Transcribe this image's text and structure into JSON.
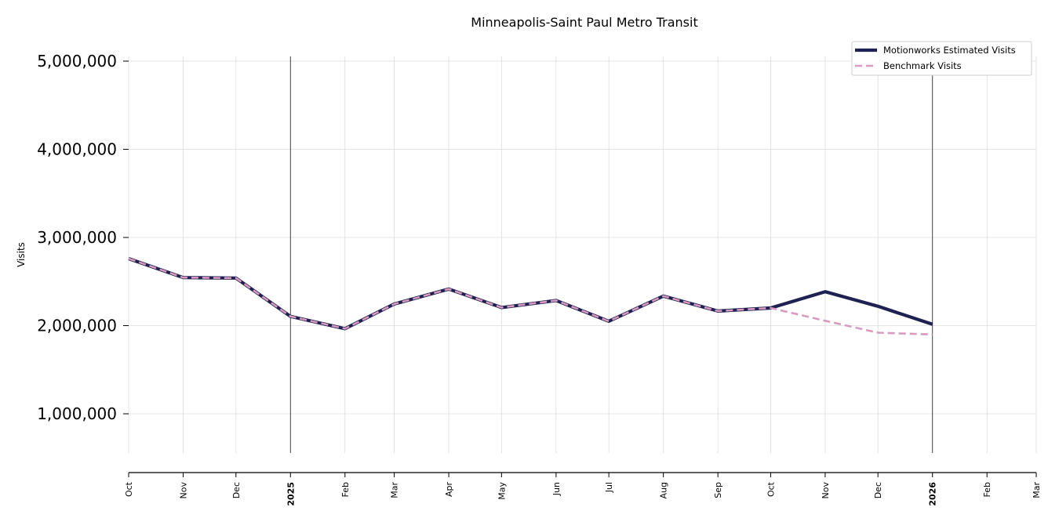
{
  "chart_data": {
    "type": "line",
    "title": "Minneapolis-Saint Paul Metro Transit",
    "ylabel": "Visits",
    "xlabel": "",
    "ylim": [
      550000,
      5050000
    ],
    "yticks": [
      1000000,
      2000000,
      3000000,
      4000000,
      5000000
    ],
    "ytick_labels": [
      "1,000,000",
      "2,000,000",
      "3,000,000",
      "4,000,000",
      "5,000,000"
    ],
    "x_ticks": [
      {
        "date": "2024-10-01",
        "label": "Oct",
        "bold": false
      },
      {
        "date": "2024-11-01",
        "label": "Nov",
        "bold": false
      },
      {
        "date": "2024-12-01",
        "label": "Dec",
        "bold": false
      },
      {
        "date": "2025-01-01",
        "label": "2025",
        "bold": true
      },
      {
        "date": "2025-02-01",
        "label": "Feb",
        "bold": false
      },
      {
        "date": "2025-03-01",
        "label": "Mar",
        "bold": false
      },
      {
        "date": "2025-04-01",
        "label": "Apr",
        "bold": false
      },
      {
        "date": "2025-05-01",
        "label": "May",
        "bold": false
      },
      {
        "date": "2025-06-01",
        "label": "Jun",
        "bold": false
      },
      {
        "date": "2025-07-01",
        "label": "Jul",
        "bold": false
      },
      {
        "date": "2025-08-01",
        "label": "Aug",
        "bold": false
      },
      {
        "date": "2025-09-01",
        "label": "Sep",
        "bold": false
      },
      {
        "date": "2025-10-01",
        "label": "Oct",
        "bold": false
      },
      {
        "date": "2025-11-01",
        "label": "Nov",
        "bold": false
      },
      {
        "date": "2025-12-01",
        "label": "Dec",
        "bold": false
      },
      {
        "date": "2026-01-01",
        "label": "2026",
        "bold": true
      },
      {
        "date": "2026-02-01",
        "label": "Feb",
        "bold": false
      },
      {
        "date": "2026-03-01",
        "label": "Mar",
        "bold": false
      }
    ],
    "year_markers": [
      "2025-01-01",
      "2026-01-01"
    ],
    "grid": true,
    "legend": "top-right",
    "series": [
      {
        "name": "Motionworks Estimated Visits",
        "color": "#1e2151",
        "style": "solid",
        "x": [
          "2024-10-01",
          "2024-11-01",
          "2024-12-01",
          "2025-01-01",
          "2025-02-01",
          "2025-03-01",
          "2025-04-01",
          "2025-05-01",
          "2025-06-01",
          "2025-07-01",
          "2025-08-01",
          "2025-09-01",
          "2025-10-01",
          "2025-11-01",
          "2025-12-01",
          "2026-01-01"
        ],
        "values": [
          2760000,
          2545000,
          2540000,
          2105000,
          1965000,
          2245000,
          2415000,
          2205000,
          2285000,
          2050000,
          2335000,
          2165000,
          2200000,
          2385000,
          2220000,
          2015000
        ]
      },
      {
        "name": "Benchmark Visits",
        "color": "#d89bbf",
        "style": "dashed",
        "x": [
          "2024-10-01",
          "2024-11-01",
          "2024-12-01",
          "2025-01-01",
          "2025-02-01",
          "2025-03-01",
          "2025-04-01",
          "2025-05-01",
          "2025-06-01",
          "2025-07-01",
          "2025-08-01",
          "2025-09-01",
          "2025-10-01",
          "2025-11-01",
          "2025-12-01",
          "2026-01-01"
        ],
        "values": [
          2760000,
          2545000,
          2540000,
          2105000,
          1965000,
          2245000,
          2415000,
          2205000,
          2285000,
          2050000,
          2335000,
          2165000,
          2200000,
          2055000,
          1920000,
          1900000
        ]
      }
    ]
  }
}
